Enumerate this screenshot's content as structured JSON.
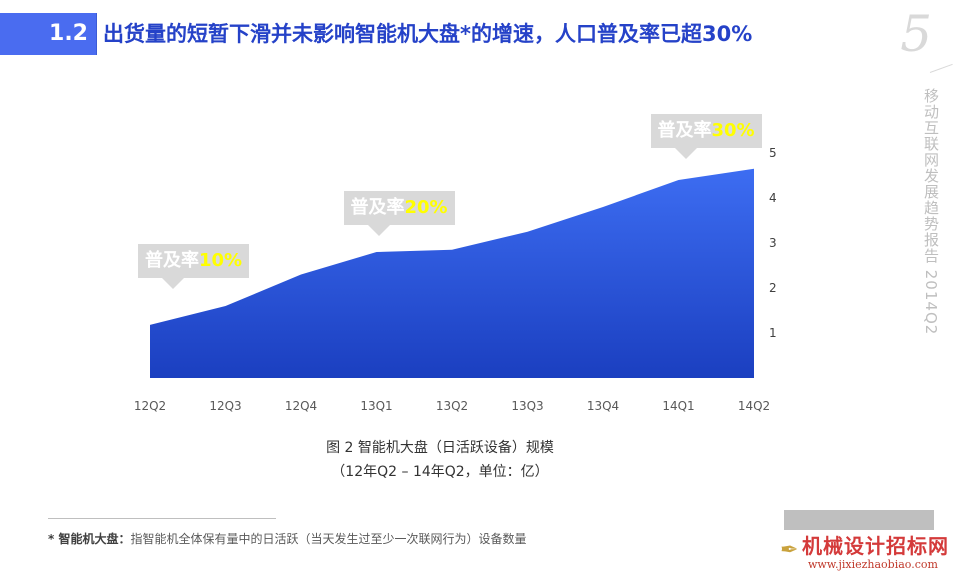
{
  "header": {
    "section_number": "1.2",
    "title": "出货量的短暂下滑并未影响智能机大盘*的增速，人口普及率已超30%"
  },
  "side": {
    "page_number": "5",
    "report_title": "移动互联网发展趋势报告 2014Q2"
  },
  "chart_data": {
    "type": "area",
    "categories": [
      "12Q2",
      "12Q3",
      "12Q4",
      "13Q1",
      "13Q2",
      "13Q3",
      "13Q4",
      "14Q1",
      "14Q2"
    ],
    "values": [
      1.18,
      1.6,
      2.3,
      2.8,
      2.85,
      3.25,
      3.8,
      4.4,
      4.65
    ],
    "y_ticks": [
      1,
      2,
      3,
      4,
      5
    ],
    "ylim": [
      0,
      5
    ],
    "y_axis_side": "right",
    "grid": false,
    "fill_color_top": "#3d6df2",
    "fill_color_bottom": "#1b3fc0",
    "annotations": [
      {
        "prefix": "普及率",
        "highlight": "10%",
        "category": "12Q2"
      },
      {
        "prefix": "普及率",
        "highlight": "20%",
        "category": "13Q1"
      },
      {
        "prefix": "普及率",
        "highlight": "30%",
        "category": "14Q1"
      }
    ]
  },
  "caption": {
    "line1": "图 2 智能机大盘（日活跃设备）规模",
    "line2": "（12年Q2 – 14年Q2，单位：亿）"
  },
  "footnote": {
    "term": "* 智能机大盘：",
    "text": "指智能机全体保有量中的日活跃（当天发生过至少一次联网行为）设备数量"
  },
  "watermark": {
    "name": "机械设计招标网",
    "url": "www.jixiezhaobiao.com"
  },
  "colors": {
    "accent": "#2542c8",
    "highlight": "#ffff00",
    "callout_bg": "#d9d9d9"
  }
}
